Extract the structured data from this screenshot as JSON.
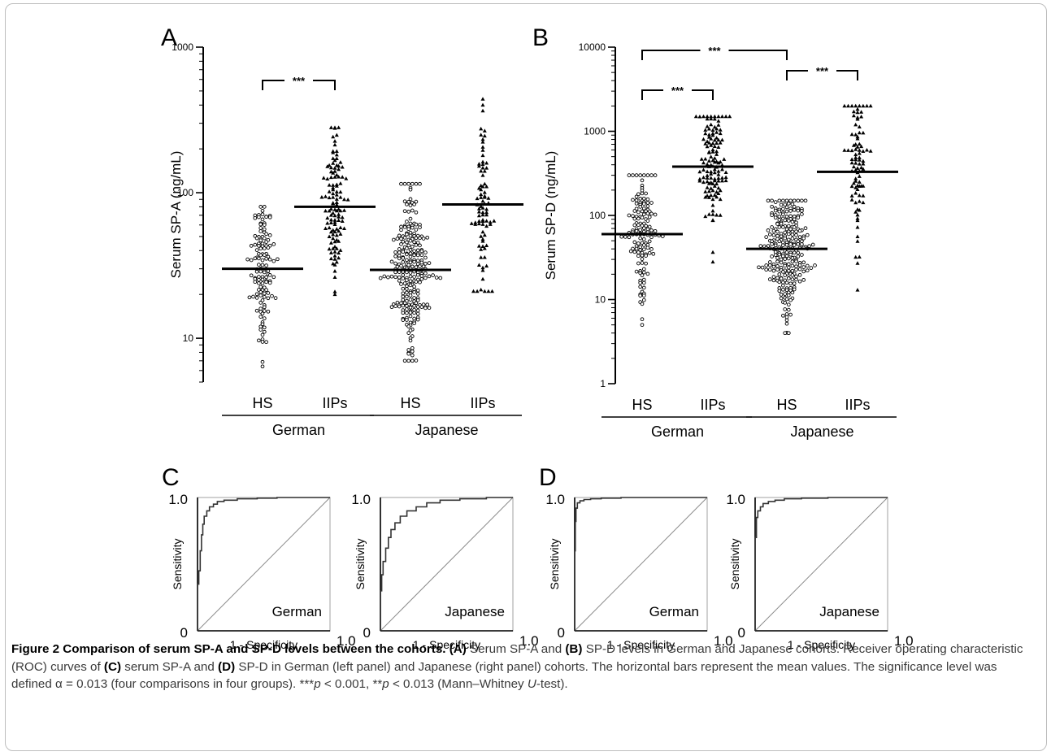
{
  "chart_data": [
    {
      "type": "scatter",
      "panel": "A",
      "ylabel": "Serum SP-A (ng/mL)",
      "yscale": "log",
      "ylim": [
        5,
        1000
      ],
      "yticks": [
        "10",
        "100",
        "1000"
      ],
      "categories": [
        "HS",
        "IIPs",
        "HS",
        "IIPs"
      ],
      "groups": [
        "German",
        "Japanese"
      ],
      "series": [
        {
          "name": "HS",
          "group": "German",
          "marker": "circle",
          "n": 130,
          "mean": 30,
          "min": 6.4,
          "max": 80
        },
        {
          "name": "IIPs",
          "group": "German",
          "marker": "triangle",
          "n": 120,
          "mean": 80,
          "min": 20,
          "max": 280
        },
        {
          "name": "HS",
          "group": "Japanese",
          "marker": "circle",
          "n": 250,
          "mean": 29.5,
          "min": 7,
          "max": 115
        },
        {
          "name": "IIPs",
          "group": "Japanese",
          "marker": "triangle",
          "n": 85,
          "mean": 83,
          "min": 21,
          "max": 440
        }
      ],
      "significance": [
        {
          "between": [
            0,
            1
          ],
          "label": "***"
        },
        {
          "between": [
            2,
            3
          ],
          "label": "***"
        }
      ]
    },
    {
      "type": "scatter",
      "panel": "B",
      "ylabel": "Serum SP-D (ng/mL)",
      "yscale": "log",
      "ylim": [
        1,
        10000
      ],
      "yticks": [
        "1",
        "10",
        "100",
        "1000",
        "10000"
      ],
      "categories": [
        "HS",
        "IIPs",
        "HS",
        "IIPs"
      ],
      "groups": [
        "German",
        "Japanese"
      ],
      "series": [
        {
          "name": "HS",
          "group": "German",
          "marker": "circle",
          "n": 140,
          "mean": 60,
          "min": 5,
          "max": 300
        },
        {
          "name": "IIPs",
          "group": "German",
          "marker": "triangle",
          "n": 130,
          "mean": 380,
          "min": 28,
          "max": 1500
        },
        {
          "name": "HS",
          "group": "Japanese",
          "marker": "circle",
          "n": 260,
          "mean": 40,
          "min": 4,
          "max": 150
        },
        {
          "name": "IIPs",
          "group": "Japanese",
          "marker": "triangle",
          "n": 90,
          "mean": 330,
          "min": 13,
          "max": 2000
        }
      ],
      "significance": [
        {
          "between": [
            0,
            1
          ],
          "label": "***"
        },
        {
          "between": [
            2,
            3
          ],
          "label": "***"
        },
        {
          "between": [
            0,
            2
          ],
          "label": "***"
        },
        {
          "between": [
            1,
            3
          ],
          "label": "**"
        }
      ]
    },
    {
      "type": "line",
      "panel": "C",
      "subpanels": [
        {
          "cohort": "German",
          "xlabel": "1 - Specificity",
          "ylabel": "Sensitivity",
          "x": [
            0,
            0,
            0.01,
            0.02,
            0.03,
            0.04,
            0.05,
            0.07,
            0.09,
            0.12,
            0.15,
            0.2,
            0.3,
            0.45,
            0.6,
            1.0
          ],
          "y": [
            0,
            0.35,
            0.45,
            0.6,
            0.72,
            0.8,
            0.86,
            0.9,
            0.93,
            0.95,
            0.97,
            0.98,
            0.99,
            0.995,
            1.0,
            1.0
          ]
        },
        {
          "cohort": "Japanese",
          "xlabel": "1 - Specificity",
          "ylabel": "Sensitivity",
          "x": [
            0,
            0,
            0.01,
            0.02,
            0.04,
            0.06,
            0.08,
            0.11,
            0.15,
            0.2,
            0.27,
            0.35,
            0.45,
            0.6,
            0.8,
            1.0
          ],
          "y": [
            0,
            0.3,
            0.42,
            0.52,
            0.62,
            0.7,
            0.76,
            0.81,
            0.86,
            0.9,
            0.93,
            0.96,
            0.98,
            0.99,
            1.0,
            1.0
          ]
        }
      ],
      "xlim": [
        0,
        1.0
      ],
      "ylim": [
        0,
        1.0
      ],
      "tick_labels": {
        "x_end": "1.0",
        "y_top": "1.0",
        "origin": "0"
      }
    },
    {
      "type": "line",
      "panel": "D",
      "subpanels": [
        {
          "cohort": "German",
          "xlabel": "1 - Specificity",
          "ylabel": "Sensitivity",
          "x": [
            0,
            0,
            0.005,
            0.01,
            0.02,
            0.04,
            0.07,
            0.12,
            0.2,
            0.35,
            0.6,
            1.0
          ],
          "y": [
            0,
            0.6,
            0.82,
            0.92,
            0.96,
            0.975,
            0.985,
            0.99,
            0.995,
            1.0,
            1.0,
            1.0
          ]
        },
        {
          "cohort": "Japanese",
          "xlabel": "1 - Specificity",
          "ylabel": "Sensitivity",
          "x": [
            0,
            0,
            0.01,
            0.02,
            0.04,
            0.06,
            0.1,
            0.15,
            0.22,
            0.35,
            0.55,
            1.0
          ],
          "y": [
            0,
            0.7,
            0.85,
            0.9,
            0.93,
            0.955,
            0.97,
            0.98,
            0.99,
            0.995,
            1.0,
            1.0
          ]
        }
      ],
      "xlim": [
        0,
        1.0
      ],
      "ylim": [
        0,
        1.0
      ],
      "tick_labels": {
        "x_end": "1.0",
        "y_top": "1.0",
        "origin": "0"
      }
    }
  ],
  "caption": {
    "label": "Figure 2 Comparison of serum SP-A and SP-D levels between the cohorts.",
    "part_a": "(A)",
    "text_a": " Serum SP-A and ",
    "part_b": "(B)",
    "text_b": " SP-D levels in German and Japanese cohorts. Receiver operating characteristic (ROC) curves of ",
    "part_c": "(C)",
    "text_c": " serum SP-A and ",
    "part_d": "(D)",
    "text_d": " SP-D in German (left panel) and Japanese (right panel) cohorts. The horizontal bars represent the mean values. The significance level was defined α = 0.013 (four comparisons in four groups). ***",
    "p1": "p",
    "text_e": " < 0.001, **",
    "p2": "p",
    "text_f": " < 0.013 (Mann–Whitney ",
    "u": "U",
    "text_g": "-test)."
  }
}
